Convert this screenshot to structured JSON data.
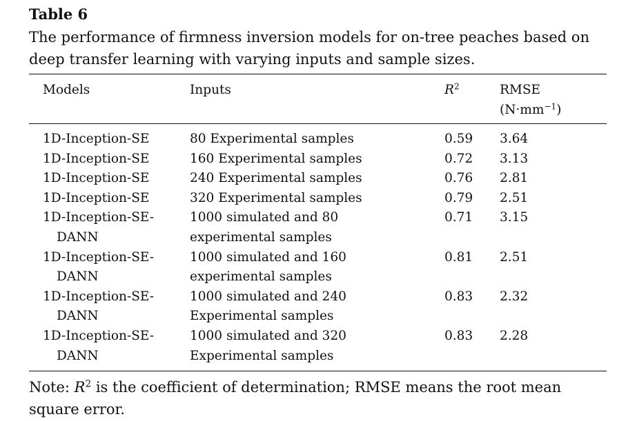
{
  "title": "Table 6",
  "caption": "The performance of firmness inversion models for on-tree peaches based on deep transfer learning with varying inputs and sample sizes.",
  "table": {
    "headers": {
      "models": "Models",
      "inputs": "Inputs",
      "r2": {
        "symbol": "R",
        "sup": "2"
      },
      "rmse": {
        "name": "RMSE",
        "unit_pre": "(N·mm",
        "unit_sup": "−1",
        "unit_post": ")"
      }
    },
    "rows": [
      [
        [
          "1D-Inception-SE"
        ],
        [
          "80 Experimental samples"
        ],
        0.59,
        3.64
      ],
      [
        [
          "1D-Inception-SE"
        ],
        [
          "160 Experimental samples"
        ],
        0.72,
        3.13
      ],
      [
        [
          "1D-Inception-SE"
        ],
        [
          "240 Experimental samples"
        ],
        0.76,
        2.81
      ],
      [
        [
          "1D-Inception-SE"
        ],
        [
          "320 Experimental samples"
        ],
        0.79,
        2.51
      ],
      [
        [
          "1D-Inception-SE-",
          "DANN"
        ],
        [
          "1000 simulated and 80",
          "experimental samples"
        ],
        0.71,
        3.15
      ],
      [
        [
          "1D-Inception-SE-",
          "DANN"
        ],
        [
          "1000 simulated and 160",
          "experimental samples"
        ],
        0.81,
        2.51
      ],
      [
        [
          "1D-Inception-SE-",
          "DANN"
        ],
        [
          "1000 simulated and 240",
          "Experimental samples"
        ],
        0.83,
        2.32
      ],
      [
        [
          "1D-Inception-SE-",
          "DANN"
        ],
        [
          "1000 simulated and 320",
          "Experimental samples"
        ],
        0.83,
        2.28
      ]
    ]
  },
  "note": {
    "prefix": "Note:",
    "symbol": "R",
    "sup": "2",
    "rest": "is the coefficient of determination; RMSE means the root mean square error."
  }
}
